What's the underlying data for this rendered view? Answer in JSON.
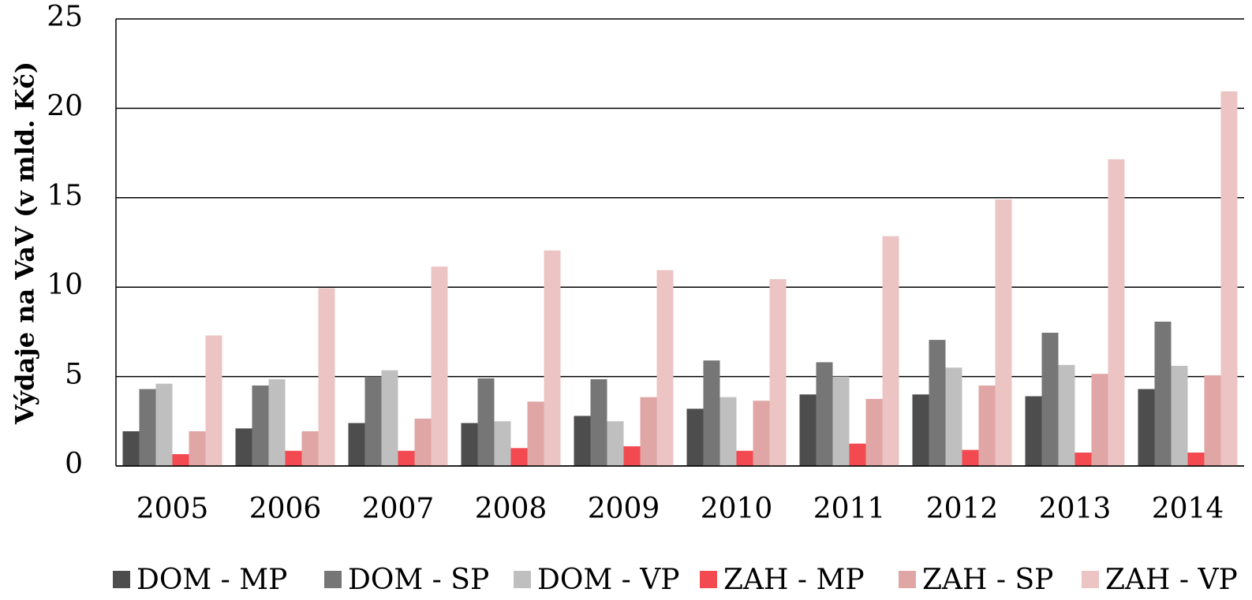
{
  "chart_data": {
    "type": "bar",
    "y_label": "Výdaje na VaV (v mld. Kč)",
    "categories": [
      "2005",
      "2006",
      "2007",
      "2008",
      "2009",
      "2010",
      "2011",
      "2012",
      "2013",
      "2014"
    ],
    "series": [
      {
        "name": "DOM - MP",
        "color": "#4d4d4d",
        "values": [
          1.94,
          2.1,
          2.4,
          2.4,
          2.8,
          3.2,
          4.0,
          4.0,
          3.9,
          4.3
        ]
      },
      {
        "name": "DOM - SP",
        "color": "#767676",
        "values": [
          4.3,
          4.5,
          5.0,
          4.9,
          4.85,
          5.9,
          5.8,
          7.05,
          7.45,
          8.07
        ]
      },
      {
        "name": "DOM - VP",
        "color": "#bfbfbf",
        "values": [
          4.6,
          4.85,
          5.35,
          2.5,
          2.5,
          3.85,
          5.0,
          5.5,
          5.65,
          5.6
        ]
      },
      {
        "name": "ZAH - MP",
        "color": "#f24a50",
        "values": [
          0.66,
          0.85,
          0.85,
          1.0,
          1.1,
          0.85,
          1.25,
          0.9,
          0.75,
          0.75
        ]
      },
      {
        "name": "ZAH - SP",
        "color": "#e0a6a6",
        "values": [
          1.94,
          1.94,
          2.65,
          3.6,
          3.85,
          3.65,
          3.75,
          4.5,
          5.15,
          5.07
        ]
      },
      {
        "name": "ZAH - VP",
        "color": "#ecc4c4",
        "values": [
          7.3,
          9.95,
          11.15,
          12.05,
          10.95,
          10.45,
          12.85,
          14.9,
          17.15,
          20.95
        ]
      }
    ],
    "ylim": [
      0,
      25
    ],
    "yticks": [
      0,
      5,
      10,
      15,
      20,
      25
    ],
    "grid": true,
    "legend": "bottom"
  }
}
